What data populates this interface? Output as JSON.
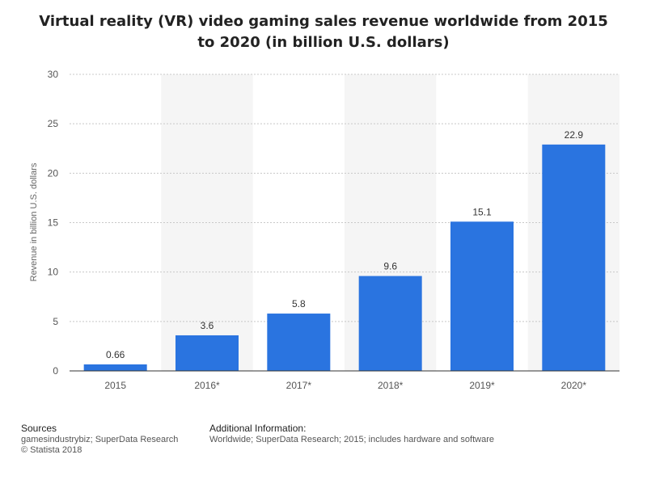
{
  "chart_data": {
    "type": "bar",
    "title": "Virtual reality (VR) video gaming sales revenue worldwide from 2015 to 2020 (in billion U.S. dollars)",
    "categories": [
      "2015",
      "2016*",
      "2017*",
      "2018*",
      "2019*",
      "2020*"
    ],
    "values": [
      0.66,
      3.6,
      5.8,
      9.6,
      15.1,
      22.9
    ],
    "value_labels": [
      "0.66",
      "3.6",
      "5.8",
      "9.6",
      "15.1",
      "22.9"
    ],
    "xlabel": "",
    "ylabel": "Revenue in billion U.S. dollars",
    "ylim": [
      0,
      30
    ],
    "yticks": [
      0,
      5,
      10,
      15,
      20,
      25,
      30
    ],
    "grid": true,
    "bar_color": "#2a74e0"
  },
  "footer": {
    "sources_heading": "Sources",
    "sources_line1": "gamesindustrybiz; SuperData Research",
    "sources_line2": "© Statista 2018",
    "additional_heading": "Additional Information:",
    "additional_text": "Worldwide; SuperData Research; 2015; includes hardware and software"
  }
}
